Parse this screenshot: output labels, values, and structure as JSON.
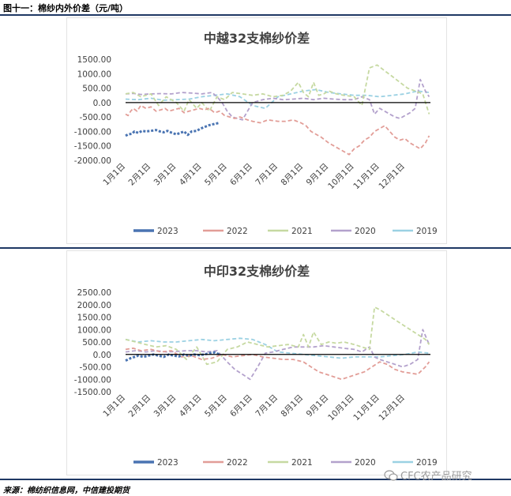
{
  "figure_title": "图十一：棉纱内外价差（元/吨）",
  "source_text": "来源：棉纺织信息网，中信建投期货",
  "watermark_text": "CFC农产品研究",
  "colors": {
    "2023": "#4a74b2",
    "2022": "#e29d97",
    "2021": "#c6d9a1",
    "2020": "#b3a1cc",
    "2019": "#9bd1e3",
    "rule": "#1f3864"
  },
  "chart_data": [
    {
      "type": "line",
      "title": "中越32支棉纱价差",
      "ylim": [
        -2000,
        1500
      ],
      "yticks": [
        "1500.00",
        "1000.00",
        "500.00",
        "0.00",
        "-500.00",
        "-1000.00",
        "-1500.00",
        "-2000.00"
      ],
      "ytick_values": [
        1500,
        1000,
        500,
        0,
        -500,
        -1000,
        -1500,
        -2000
      ],
      "categories": [
        "1月1日",
        "2月1日",
        "3月1日",
        "4月1日",
        "5月1日",
        "6月1日",
        "7月1日",
        "8月1日",
        "9月1日",
        "10月1日",
        "11月1日",
        "12月1日"
      ],
      "legend_position": "bottom",
      "series": [
        {
          "name": "2023",
          "x": [
            0,
            0.1,
            0.25,
            0.35,
            0.5,
            0.65,
            0.8,
            1.0,
            1.2,
            1.35,
            1.5,
            1.65,
            1.8,
            2.0,
            2.15,
            2.3,
            2.45,
            2.6,
            2.8,
            2.95,
            3.1,
            3.3,
            3.5,
            3.7
          ],
          "values": [
            -1150,
            -1100,
            -1080,
            -1000,
            -1050,
            -980,
            -1000,
            -980,
            -950,
            -1000,
            -1030,
            -980,
            -1040,
            -1100,
            -1050,
            -1000,
            -1120,
            -1000,
            -980,
            -900,
            -850,
            -780,
            -740,
            -700
          ]
        },
        {
          "name": "2022",
          "x": [
            0,
            0.1,
            0.2,
            0.3,
            0.45,
            0.6,
            0.8,
            1.0,
            1.2,
            1.4,
            1.55,
            1.7,
            1.9,
            2.1,
            2.3,
            2.5,
            2.7,
            2.9,
            3.1,
            3.3,
            3.5,
            3.7,
            3.9,
            4.1,
            4.3,
            4.5,
            4.8,
            5.0,
            5.3,
            5.6,
            6.0,
            6.3,
            6.6,
            6.9,
            7.1,
            7.3,
            7.5,
            7.7,
            8.0,
            8.2,
            8.4,
            8.6,
            8.8,
            9.0,
            9.2,
            9.4,
            9.6,
            9.8,
            10.0,
            10.2,
            10.4,
            10.6,
            10.8,
            11.0,
            11.2,
            11.4,
            11.6,
            11.8,
            11.95
          ],
          "values": [
            -400,
            -450,
            -300,
            -200,
            -300,
            -100,
            -200,
            -150,
            -300,
            -250,
            -200,
            -300,
            -250,
            -200,
            -350,
            -300,
            -250,
            -200,
            -250,
            -200,
            -350,
            -300,
            -450,
            -500,
            -550,
            -500,
            -600,
            -650,
            -700,
            -600,
            -650,
            -650,
            -600,
            -700,
            -800,
            -1000,
            -1100,
            -1200,
            -1400,
            -1500,
            -1600,
            -1700,
            -1800,
            -1600,
            -1500,
            -1300,
            -1200,
            -1000,
            -900,
            -800,
            -1000,
            -1200,
            -1300,
            -1250,
            -1400,
            -1500,
            -1600,
            -1400,
            -1150
          ]
        },
        {
          "name": "2021",
          "x": [
            0,
            0.3,
            0.6,
            1.0,
            1.3,
            1.6,
            2.0,
            2.3,
            2.5,
            2.8,
            3.0,
            3.3,
            3.6,
            3.9,
            4.2,
            4.6,
            5.0,
            5.4,
            5.8,
            6.2,
            6.5,
            6.8,
            7.0,
            7.2,
            7.4,
            7.6,
            7.8,
            8.0,
            8.3,
            8.6,
            9.0,
            9.3,
            9.6,
            9.9,
            10.2,
            10.5,
            10.8,
            11.1,
            11.4,
            11.7,
            11.95
          ],
          "values": [
            300,
            350,
            200,
            300,
            -100,
            200,
            0,
            -300,
            100,
            -200,
            0,
            -300,
            200,
            100,
            350,
            300,
            250,
            300,
            200,
            250,
            400,
            700,
            350,
            200,
            700,
            250,
            300,
            400,
            300,
            250,
            200,
            -100,
            1200,
            1300,
            1100,
            900,
            700,
            500,
            400,
            300,
            -400
          ]
        },
        {
          "name": "2020",
          "x": [
            0,
            0.3,
            0.6,
            1.0,
            1.4,
            1.8,
            2.2,
            2.6,
            3.0,
            3.4,
            3.6,
            3.8,
            4.0,
            4.2,
            4.4,
            4.6,
            4.8,
            5.0,
            5.4,
            5.8,
            6.2,
            6.6,
            7.0,
            7.4,
            7.8,
            8.2,
            8.6,
            9.0,
            9.3,
            9.6,
            9.8,
            10.0,
            10.2,
            10.4,
            10.6,
            10.8,
            11.0,
            11.2,
            11.4,
            11.6,
            11.8,
            11.95
          ],
          "values": [
            300,
            320,
            280,
            300,
            310,
            300,
            350,
            330,
            300,
            350,
            200,
            0,
            -300,
            -500,
            -550,
            -600,
            -300,
            0,
            100,
            150,
            100,
            120,
            150,
            100,
            150,
            120,
            100,
            100,
            200,
            100,
            -400,
            -200,
            -300,
            -400,
            -500,
            -550,
            -450,
            -350,
            -200,
            800,
            400,
            200
          ]
        },
        {
          "name": "2019",
          "x": [
            0,
            0.5,
            1.0,
            1.5,
            2.0,
            2.5,
            3.0,
            3.5,
            4.0,
            4.5,
            5.0,
            5.5,
            6.0,
            6.5,
            7.0,
            7.5,
            8.0,
            8.5,
            9.0,
            9.5,
            10.0,
            10.5,
            11.0,
            11.5,
            11.95
          ],
          "values": [
            120,
            100,
            150,
            80,
            100,
            120,
            200,
            250,
            300,
            200,
            -100,
            -200,
            200,
            300,
            400,
            450,
            350,
            300,
            250,
            250,
            200,
            250,
            300,
            400,
            350
          ]
        }
      ]
    },
    {
      "type": "line",
      "title": "中印32支棉纱价差",
      "ylim": [
        -1500,
        2500
      ],
      "yticks": [
        "2500.00",
        "2000.00",
        "1500.00",
        "1000.00",
        "500.00",
        "0.00",
        "-500.00",
        "-1000.00",
        "-1500.00"
      ],
      "ytick_values": [
        2500,
        2000,
        1500,
        1000,
        500,
        0,
        -500,
        -1000,
        -1500
      ],
      "categories": [
        "1月1日",
        "2月1日",
        "3月1日",
        "4月1日",
        "5月1日",
        "6月1日",
        "7月1日",
        "8月1日",
        "9月1日",
        "10月1日",
        "11月1日",
        "12月1日"
      ],
      "legend_position": "bottom",
      "series": [
        {
          "name": "2023",
          "x": [
            0,
            0.1,
            0.2,
            0.35,
            0.5,
            0.7,
            0.9,
            1.1,
            1.3,
            1.5,
            1.7,
            1.9,
            2.1,
            2.3,
            2.5,
            2.7,
            2.9,
            3.1,
            3.3,
            3.5,
            3.7
          ],
          "values": [
            -250,
            -200,
            -150,
            -100,
            -50,
            -100,
            -50,
            0,
            -50,
            -100,
            0,
            -50,
            -80,
            0,
            -50,
            0,
            -30,
            0,
            50,
            80,
            0
          ]
        },
        {
          "name": "2022",
          "x": [
            0,
            0.3,
            0.6,
            1.0,
            1.4,
            1.8,
            2.2,
            2.6,
            3.0,
            3.4,
            3.8,
            4.2,
            4.6,
            5.0,
            5.4,
            5.8,
            6.2,
            6.6,
            7.0,
            7.3,
            7.6,
            7.9,
            8.2,
            8.5,
            8.8,
            9.1,
            9.4,
            9.7,
            10.0,
            10.3,
            10.6,
            10.9,
            11.2,
            11.5,
            11.8,
            11.95
          ],
          "values": [
            200,
            250,
            150,
            200,
            100,
            150,
            -100,
            -50,
            -200,
            -150,
            0,
            -100,
            -50,
            0,
            -100,
            -150,
            -200,
            -200,
            -300,
            -500,
            -700,
            -800,
            -900,
            -1000,
            -900,
            -800,
            -700,
            -500,
            -300,
            -400,
            -600,
            -700,
            -750,
            -800,
            -500,
            -300
          ]
        },
        {
          "name": "2021",
          "x": [
            0,
            0.4,
            0.8,
            1.2,
            1.6,
            2.0,
            2.4,
            2.8,
            3.2,
            3.6,
            4.0,
            4.4,
            4.8,
            5.2,
            5.6,
            6.0,
            6.4,
            6.8,
            7.0,
            7.2,
            7.4,
            7.7,
            8.0,
            8.3,
            8.6,
            9.0,
            9.3,
            9.6,
            9.8,
            10.0,
            10.3,
            10.6,
            10.9,
            11.2,
            11.5,
            11.8,
            11.95
          ],
          "values": [
            600,
            500,
            400,
            300,
            350,
            200,
            -200,
            300,
            -400,
            -300,
            200,
            300,
            500,
            400,
            300,
            350,
            400,
            300,
            800,
            300,
            900,
            400,
            500,
            450,
            500,
            400,
            300,
            200,
            1900,
            1800,
            1600,
            1400,
            1200,
            1000,
            800,
            600,
            400
          ]
        },
        {
          "name": "2020",
          "x": [
            0,
            0.4,
            0.8,
            1.2,
            1.6,
            2.0,
            2.4,
            2.8,
            3.2,
            3.6,
            4.0,
            4.3,
            4.6,
            4.9,
            5.2,
            5.5,
            5.8,
            6.2,
            6.6,
            7.0,
            7.4,
            7.8,
            8.2,
            8.6,
            9.0,
            9.3,
            9.6,
            9.8,
            10.0,
            10.3,
            10.6,
            10.9,
            11.2,
            11.5,
            11.7,
            11.95
          ],
          "values": [
            100,
            150,
            100,
            150,
            100,
            120,
            150,
            150,
            100,
            150,
            -300,
            -600,
            -800,
            -1000,
            -500,
            50,
            100,
            200,
            300,
            300,
            300,
            350,
            300,
            250,
            200,
            100,
            300,
            -100,
            -200,
            -300,
            -400,
            -500,
            -400,
            -200,
            1000,
            400
          ]
        },
        {
          "name": "2019",
          "x": [
            0,
            0.5,
            1.0,
            1.5,
            2.0,
            2.5,
            3.0,
            3.5,
            4.0,
            4.5,
            5.0,
            5.5,
            6.0,
            6.5,
            7.0,
            7.5,
            8.0,
            8.5,
            9.0,
            9.5,
            10.0,
            10.5,
            11.0,
            11.5,
            11.95
          ],
          "values": [
            600,
            500,
            550,
            500,
            500,
            550,
            600,
            550,
            600,
            650,
            600,
            400,
            100,
            50,
            0,
            -50,
            -100,
            -150,
            -100,
            -100,
            -100,
            -50,
            0,
            100,
            50
          ]
        }
      ]
    }
  ]
}
